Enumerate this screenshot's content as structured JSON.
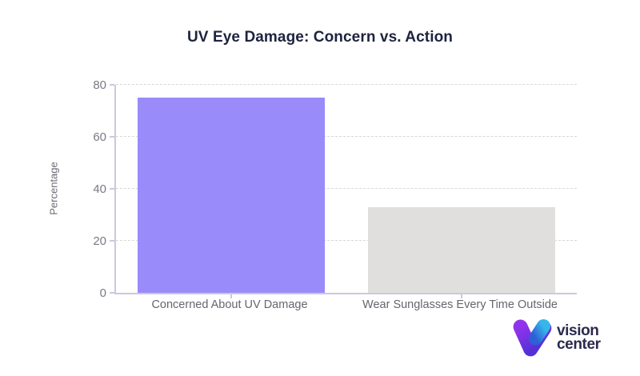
{
  "chart_data": {
    "type": "bar",
    "title": "UV Eye Damage: Concern vs. Action",
    "categories": [
      "Concerned About UV Damage",
      "Wear Sunglasses Every Time Outside"
    ],
    "values": [
      75,
      33
    ],
    "bar_colors": [
      "#9a8bfa",
      "#e0dfdd"
    ],
    "xlabel": "",
    "ylabel": "Percentage",
    "ylim": [
      0,
      80
    ],
    "yticks": [
      0,
      20,
      40,
      60,
      80
    ],
    "grid": "horizontal-dashed",
    "legend_position": "none"
  },
  "styles": {
    "title_color": "#1e2340",
    "axis_color": "#cbc8df",
    "grid_color": "#d8d8d8",
    "y_tick_label_color": "#7b7886",
    "x_label_color": "#67656f",
    "background": "#ffffff"
  },
  "logo": {
    "line1": "vision",
    "line2": "center",
    "text_color": "#2b2a4e",
    "icon_purple_start": "#9233ec",
    "icon_purple_end": "#5530d6",
    "icon_blue_start": "#36b7ea",
    "icon_blue_end": "#2e5fd5"
  }
}
